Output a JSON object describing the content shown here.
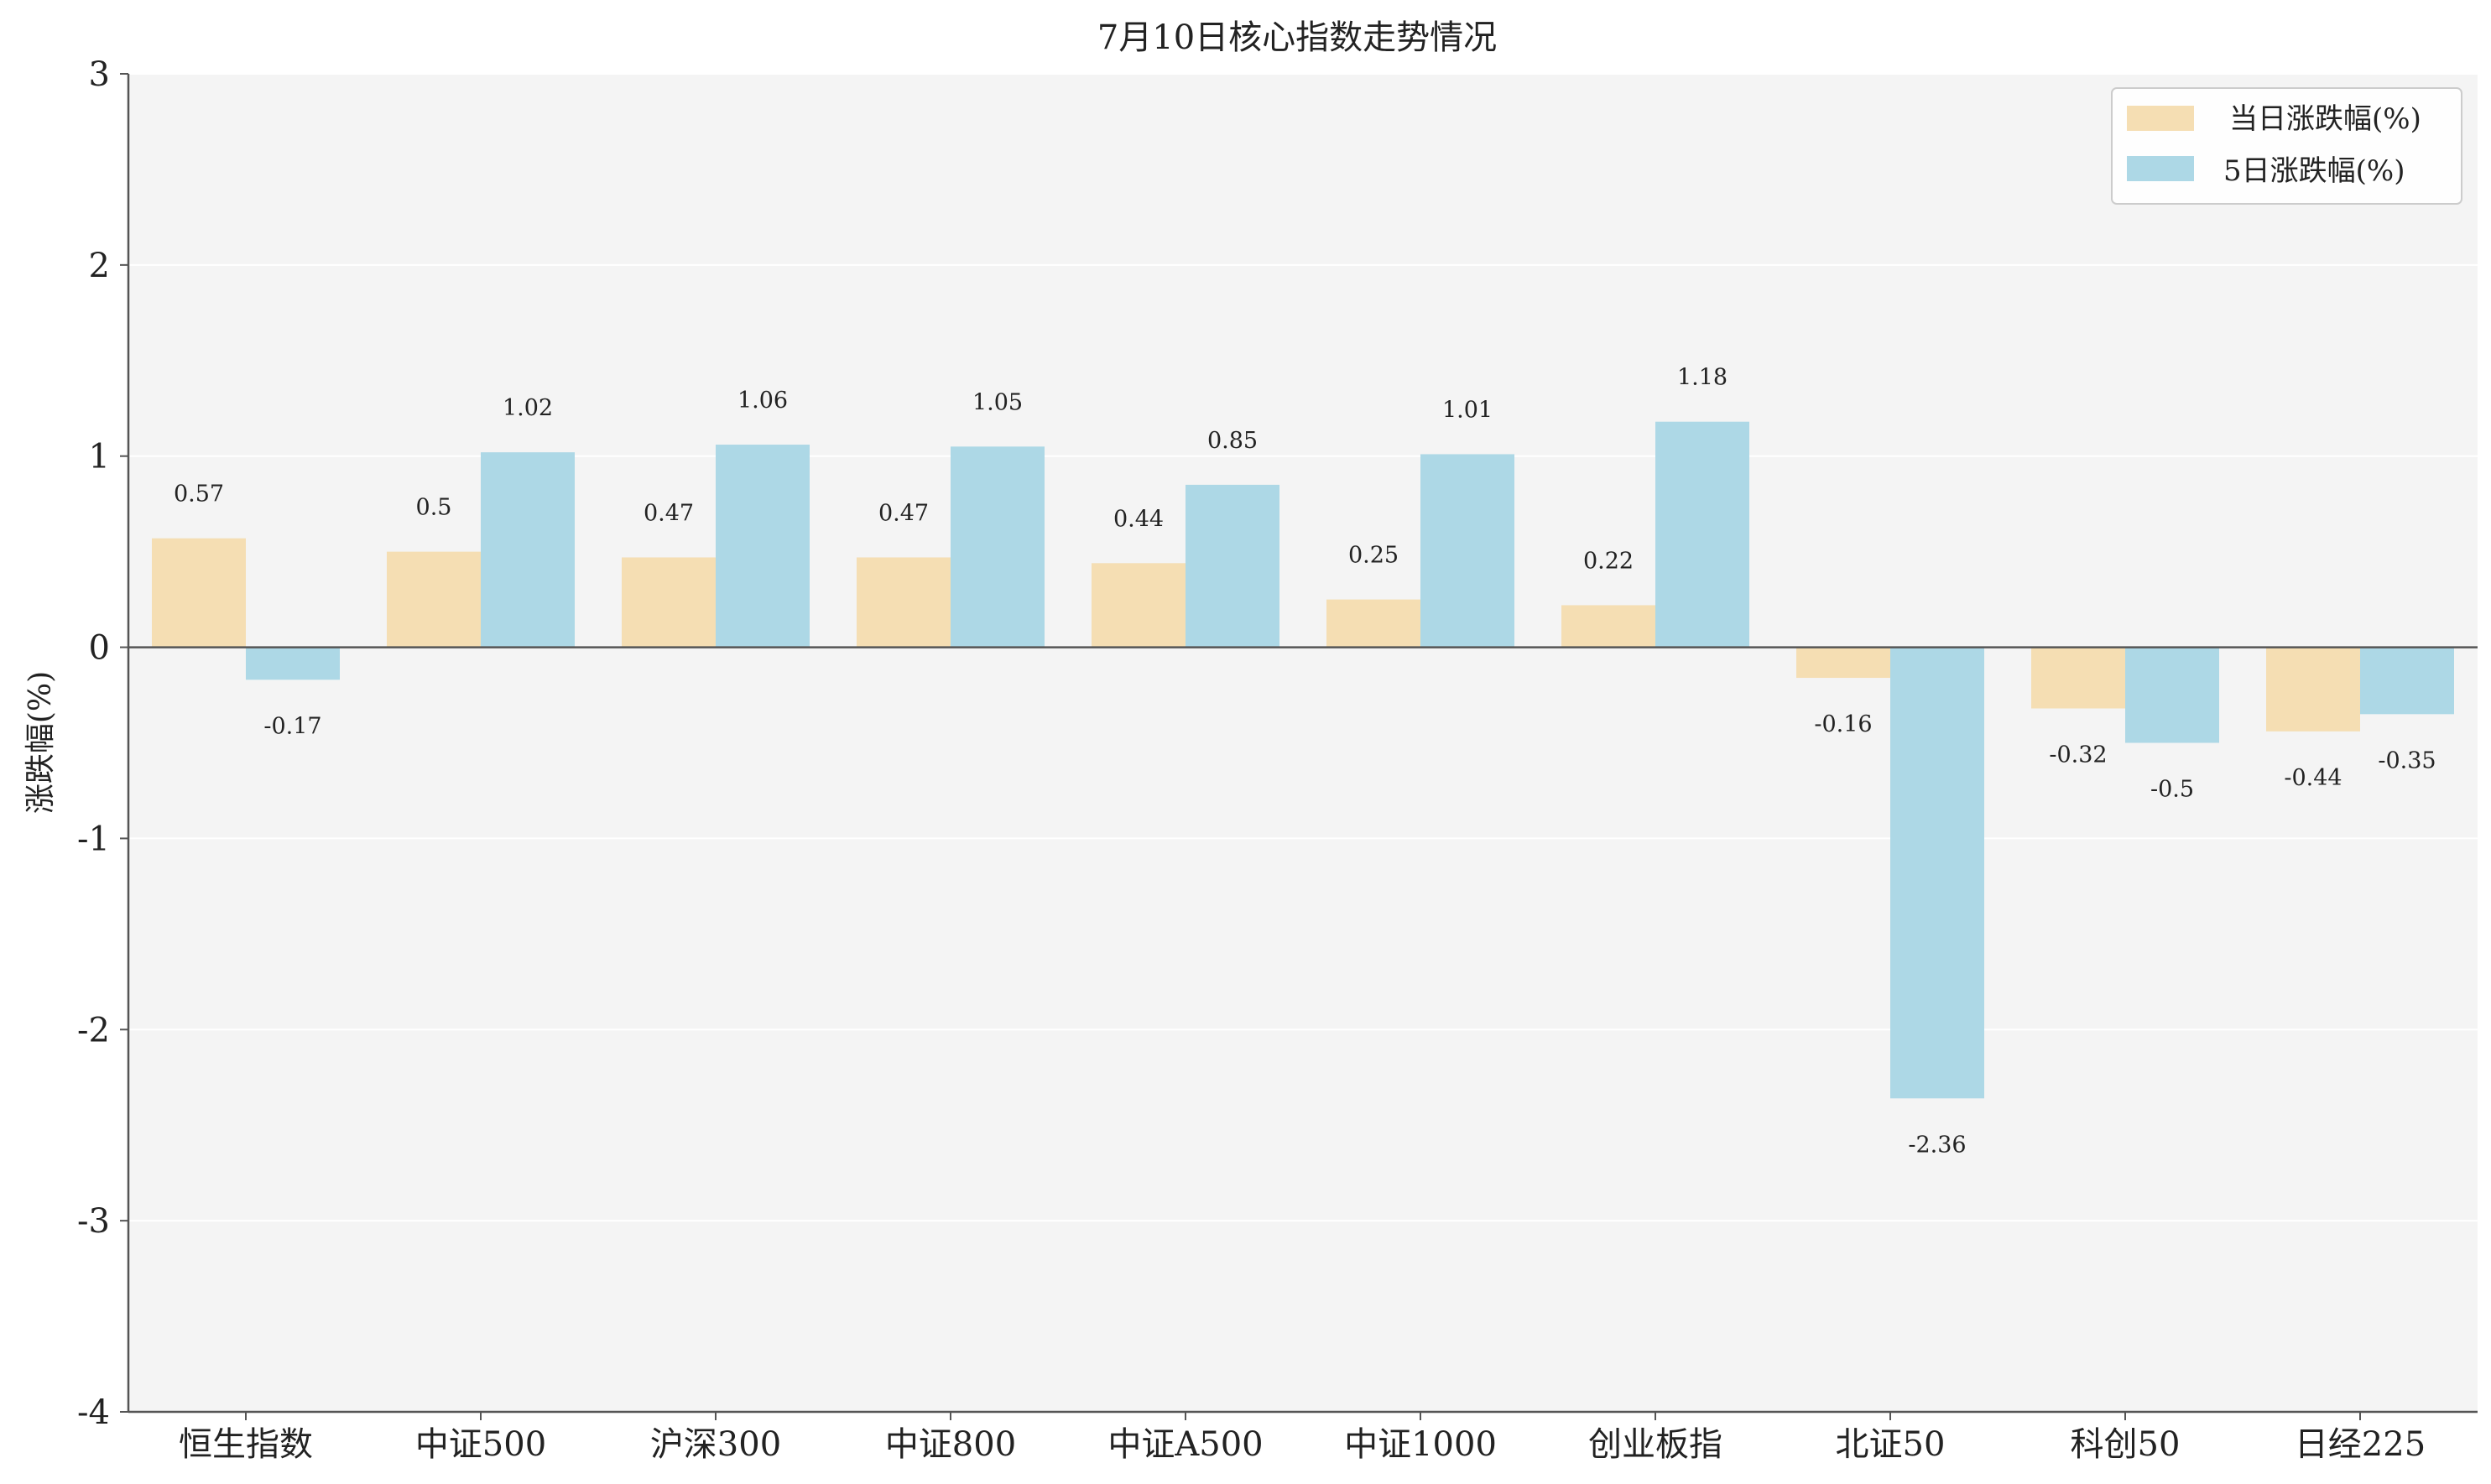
{
  "chart_data": {
    "type": "bar",
    "title": "7月10日核心指数走势情况",
    "xlabel": "",
    "ylabel": "涨跌幅(%)",
    "ylim": [
      -4,
      3
    ],
    "yticks": [
      "3",
      "2",
      "1",
      "0",
      "-1",
      "-2",
      "-3",
      "-4"
    ],
    "categories": [
      "恒生指数",
      "中证500",
      "沪深300",
      "中证800",
      "中证A500",
      "中证1000",
      "创业板指",
      "北证50",
      "科创50",
      "日经225"
    ],
    "series": [
      {
        "name": "当日涨跌幅(%)",
        "color": "#f5deb3",
        "values": [
          0.57,
          0.5,
          0.47,
          0.47,
          0.44,
          0.25,
          0.22,
          -0.16,
          -0.32,
          -0.44
        ],
        "labels": [
          "0.57",
          "0.5",
          "0.47",
          "0.47",
          "0.44",
          "0.25",
          "0.22",
          "-0.16",
          "-0.32",
          "-0.44"
        ]
      },
      {
        "name": "5日涨跌幅(%)",
        "color": "#add8e6",
        "values": [
          -0.17,
          1.02,
          1.06,
          1.05,
          0.85,
          1.01,
          1.18,
          -2.36,
          -0.5,
          -0.35
        ],
        "labels": [
          "-0.17",
          "1.02",
          "1.06",
          "1.05",
          "0.85",
          "1.01",
          "1.18",
          "-2.36",
          "-0.5",
          "-0.35"
        ]
      }
    ],
    "grid": true,
    "grid_axis": "y",
    "legend_position": "top-right",
    "colors": {
      "plot_background": "#f4f4f4",
      "grid": "#ffffff",
      "axis": "#555555",
      "zero_line": "#555555"
    }
  }
}
